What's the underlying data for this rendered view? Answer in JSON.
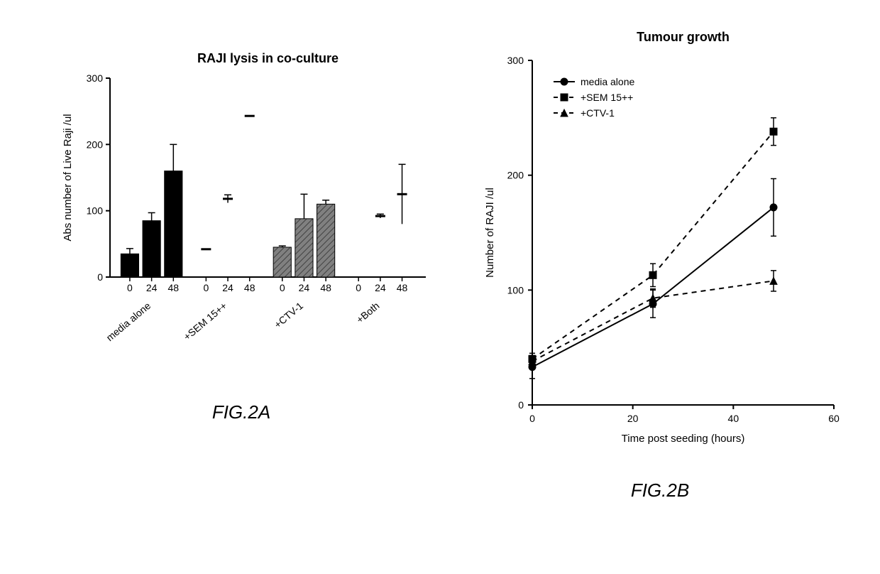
{
  "figure_a": {
    "caption": "FIG.2A",
    "chart": {
      "type": "bar",
      "title": "RAJI lysis in co-culture",
      "title_fontsize": 18,
      "title_fontweight": "bold",
      "ylabel": "Abs number of Live Raji /ul",
      "label_fontsize": 15,
      "ylim": [
        0,
        300
      ],
      "ytick_step": 100,
      "yticks": [
        0,
        100,
        200,
        300
      ],
      "tick_fontsize": 14,
      "background_color": "#ffffff",
      "axis_color": "#000000",
      "axis_width": 2,
      "bar_width": 0.82,
      "bar_gap": 0.05,
      "group_gap": 0.5,
      "groups": [
        {
          "label": "media alone",
          "sub_labels": [
            "0",
            "24",
            "48"
          ],
          "values": [
            35,
            85,
            160
          ],
          "errors": [
            8,
            12,
            40
          ],
          "fill": "#000000",
          "pattern": "solid"
        },
        {
          "label": "+SEM 15++",
          "sub_labels": [
            "0",
            "24",
            "48"
          ],
          "values": [
            0,
            0,
            0
          ],
          "errors": [
            0,
            0,
            0
          ],
          "markers_only": true,
          "marker_y": [
            42,
            118,
            243
          ],
          "marker_err": [
            0,
            6,
            0
          ],
          "fill": "#ffffff",
          "pattern": "none"
        },
        {
          "label": "+CTV-1",
          "sub_labels": [
            "0",
            "24",
            "48"
          ],
          "values": [
            45,
            88,
            110
          ],
          "errors": [
            2,
            37,
            6
          ],
          "fill": "#808080",
          "pattern": "hatched",
          "hatch_color": "#404040"
        },
        {
          "label": "+Both",
          "sub_labels": [
            "0",
            "24",
            "48"
          ],
          "values": [
            0,
            0,
            0
          ],
          "errors": [
            0,
            0,
            0
          ],
          "markers_only": true,
          "marker_y": [
            0,
            92,
            125
          ],
          "marker_err": [
            0,
            3,
            45
          ],
          "fill": "#ffffff",
          "pattern": "none"
        }
      ]
    }
  },
  "figure_b": {
    "caption": "FIG.2B",
    "chart": {
      "type": "line",
      "title": "Tumour growth",
      "title_fontsize": 18,
      "title_fontweight": "bold",
      "xlabel": "Time post seeding (hours)",
      "ylabel": "Number of RAJI /ul",
      "label_fontsize": 15,
      "xlim": [
        0,
        60
      ],
      "xtick_step": 20,
      "xticks": [
        0,
        20,
        40,
        60
      ],
      "ylim": [
        0,
        300
      ],
      "ytick_step": 100,
      "yticks": [
        0,
        100,
        200,
        300
      ],
      "tick_fontsize": 14,
      "background_color": "#ffffff",
      "axis_color": "#000000",
      "axis_width": 2,
      "marker_size": 7,
      "line_width": 2,
      "error_cap_width": 8,
      "legend": {
        "position": "top-left-inside",
        "fontsize": 14,
        "items": [
          "media alone",
          "+SEM 15++",
          "+CTV-1"
        ]
      },
      "series": [
        {
          "name": "media alone",
          "x": [
            0,
            24,
            48
          ],
          "y": [
            33,
            88,
            172
          ],
          "err": [
            10,
            12,
            25
          ],
          "color": "#000000",
          "marker": "circle",
          "dash": "solid"
        },
        {
          "name": "+SEM 15++",
          "x": [
            0,
            24,
            48
          ],
          "y": [
            40,
            113,
            238
          ],
          "err": [
            5,
            10,
            12
          ],
          "color": "#000000",
          "marker": "square",
          "dash": "dashed"
        },
        {
          "name": "+CTV-1",
          "x": [
            0,
            24,
            48
          ],
          "y": [
            38,
            93,
            108
          ],
          "err": [
            5,
            8,
            9
          ],
          "color": "#000000",
          "marker": "triangle",
          "dash": "dashed"
        }
      ]
    }
  }
}
